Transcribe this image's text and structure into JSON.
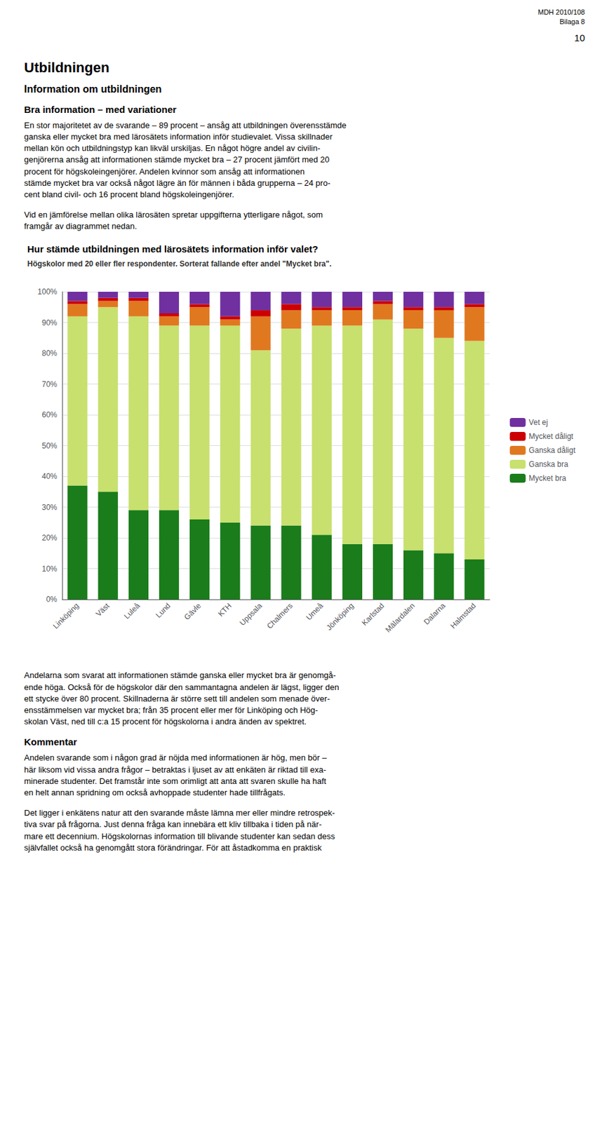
{
  "page_header": [
    "MDH 2010/108",
    "Bilaga 8",
    "10"
  ],
  "text_before": [
    {
      "kind": "h1",
      "text": "Utbildningen"
    },
    {
      "kind": "h2",
      "text": "Information om utbildningen"
    },
    {
      "kind": "h3",
      "text": "Bra information – med variationer"
    },
    {
      "kind": "p",
      "text": "En stor majoritetet av de svarande – 89 procent – ansåg att utbildningen överensstämde\nganska eller mycket bra med lärosätets information inför studievalet. Vissa skillnader\nmellan kön och utbildningstyp kan likväl urskiljas. En något högre andel av civilin-\ngenjörerna ansåg att informationen stämde mycket bra – 27 procent jämfört med 20\nprocent för högskoleingenjörer. Andelen kvinnor som ansåg att informationen\nstämde mycket bra var också något lägre än för männen i båda grupperna – 24 pro-\ncent bland civil- och 16 procent bland högskoleingenjörer."
    },
    {
      "kind": "p",
      "text": "Vid en jämförelse mellan olika lärosäten spretar uppgifterna ytterligare något, som\nframgår av diagrammet nedan."
    }
  ],
  "text_after": [
    {
      "kind": "p",
      "text": "Andelarna som svarat att informationen stämde ganska eller mycket bra är genomgå-\nende höga. Också för de högskolor där den sammantagna andelen är lägst, ligger den\nett stycke över 80 procent. Skillnaderna är större sett till andelen som menade över-\nensstämmelsen var mycket bra; från 35 procent eller mer för Linköping och Hög-\nskolan Väst, ned till c:a 15 procent för högskolorna i andra änden av spektret."
    },
    {
      "kind": "h3",
      "text": "Kommentar"
    },
    {
      "kind": "p",
      "text": "Andelen svarande som i någon grad är nöjda med informationen är hög, men bör –\nhär liksom vid vissa andra frågor – betraktas i ljuset av att enkäten är riktad till exa-\nminerade studenter. Det framstår inte som orimligt att anta att svaren skulle ha haft\nen helt annan spridning om också avhoppade studenter hade tillfrågats."
    },
    {
      "kind": "p",
      "text": "Det ligger i enkätens natur att den svarande måste lämna mer eller mindre retrospek-\ntiva svar på frågorna. Just denna fråga kan innebära ett kliv tillbaka i tiden på när-\nmare ett decennium. Högskolornas information till blivande studenter kan sedan dess\nsjälvfallet också ha genomgått stora förändringar. För att åstadkomma en praktisk"
    }
  ],
  "chart_data": {
    "type": "bar",
    "stacked": true,
    "title": "Hur stämde utbildningen med lärosätets information inför valet?",
    "subtitle": "Högskolor med 20 eller fler respondenter. Sorterat fallande efter andel \"Mycket bra\".",
    "categories": [
      "Linköping",
      "Väst",
      "Luleå",
      "Lund",
      "Gävle",
      "KTH",
      "Uppsala",
      "Chalmers",
      "Umeå",
      "Jönköping",
      "Karlstad",
      "Mälardalen",
      "Dalarna",
      "Halmstad"
    ],
    "series": [
      {
        "name": "Mycket bra",
        "color": "#1a7c1a",
        "values": [
          37,
          35,
          29,
          29,
          26,
          25,
          24,
          24,
          21,
          18,
          18,
          16,
          15,
          13
        ]
      },
      {
        "name": "Ganska bra",
        "color": "#c8e06e",
        "values": [
          55,
          60,
          63,
          60,
          63,
          64,
          57,
          64,
          68,
          71,
          73,
          72,
          70,
          71
        ]
      },
      {
        "name": "Ganska dåligt",
        "color": "#e07820",
        "values": [
          4,
          2,
          5,
          3,
          6,
          2,
          11,
          6,
          5,
          5,
          5,
          6,
          9,
          11
        ]
      },
      {
        "name": "Mycket dåligt",
        "color": "#cc0000",
        "values": [
          1,
          1,
          1,
          1,
          1,
          1,
          2,
          2,
          1,
          1,
          1,
          1,
          1,
          1
        ]
      },
      {
        "name": "Vet ej",
        "color": "#7030a0",
        "values": [
          3,
          2,
          2,
          7,
          4,
          8,
          6,
          4,
          5,
          5,
          3,
          5,
          5,
          4
        ]
      }
    ],
    "ylim": [
      0,
      100
    ],
    "yticks": [
      {
        "value": 0,
        "label": "0%"
      },
      {
        "value": 10,
        "label": "10%"
      },
      {
        "value": 20,
        "label": "20%"
      },
      {
        "value": 30,
        "label": "30%"
      },
      {
        "value": 40,
        "label": "40%"
      },
      {
        "value": 50,
        "label": "50%"
      },
      {
        "value": 60,
        "label": "60%"
      },
      {
        "value": 70,
        "label": "70%"
      },
      {
        "value": 80,
        "label": "80%"
      },
      {
        "value": 90,
        "label": "90%"
      },
      {
        "value": 100,
        "label": "100%"
      }
    ],
    "grid": true,
    "legend": "right"
  }
}
